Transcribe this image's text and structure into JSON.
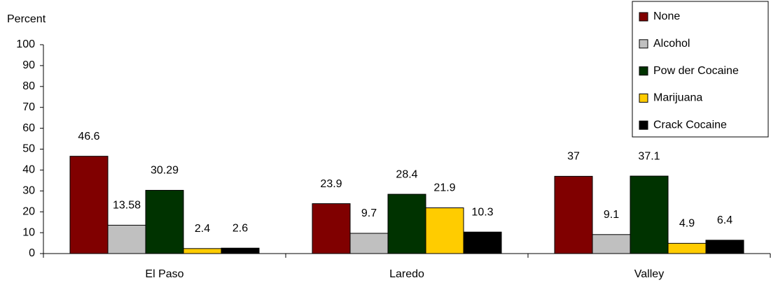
{
  "chart_data": {
    "type": "bar",
    "y_label": "Percent",
    "categories": [
      "El Paso",
      "Laredo",
      "Valley"
    ],
    "series": [
      {
        "name": "None",
        "color": "#800000",
        "values": [
          46.6,
          23.9,
          37
        ]
      },
      {
        "name": "Alcohol",
        "color": "#c0c0c0",
        "values": [
          13.58,
          9.7,
          9.1
        ]
      },
      {
        "name": "Pow der Cocaine",
        "color": "#003300",
        "values": [
          30.29,
          28.4,
          37.1
        ]
      },
      {
        "name": "Marijuana",
        "color": "#ffcc00",
        "values": [
          2.4,
          21.9,
          4.9
        ]
      },
      {
        "name": "Crack Cocaine",
        "color": "#000000",
        "values": [
          2.6,
          10.3,
          6.4
        ]
      }
    ],
    "ylim": [
      0,
      100
    ],
    "yticks": [
      0,
      10,
      20,
      30,
      40,
      50,
      60,
      70,
      80,
      90,
      100
    ],
    "grid": false,
    "legend": "top-right",
    "data_labels": true
  }
}
